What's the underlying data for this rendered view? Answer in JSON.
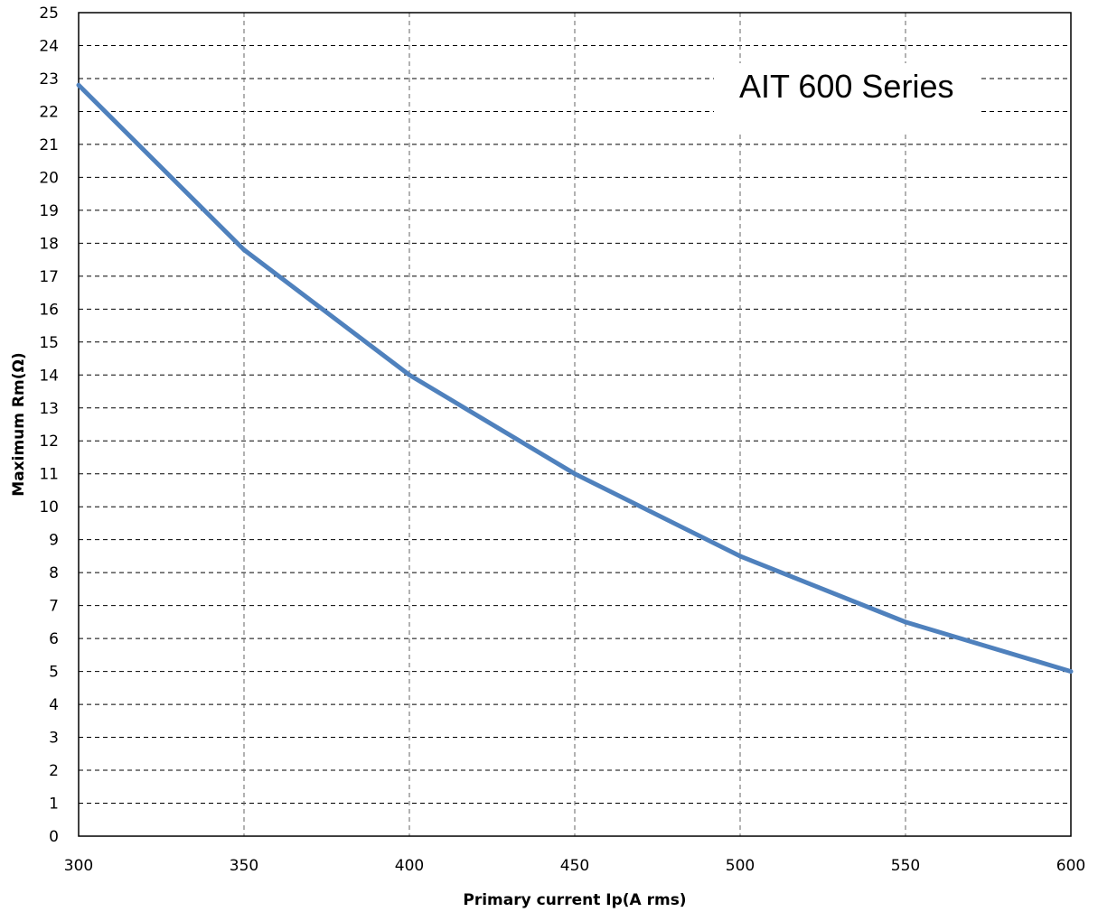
{
  "chart_data": {
    "type": "line",
    "title": "",
    "xlabel": "Primary current Ip(A rms)",
    "ylabel": "Maximum Rm(Ω)",
    "xlim": [
      300,
      600
    ],
    "ylim": [
      0,
      25
    ],
    "x_ticks": [
      300,
      350,
      400,
      450,
      500,
      550,
      600
    ],
    "y_ticks": [
      0,
      1,
      2,
      3,
      4,
      5,
      6,
      7,
      8,
      9,
      10,
      11,
      12,
      13,
      14,
      15,
      16,
      17,
      18,
      19,
      20,
      21,
      22,
      23,
      24,
      25
    ],
    "grid": true,
    "grid_style": "dashed",
    "series": [
      {
        "x": [
          300,
          350,
          400,
          450,
          500,
          550,
          600
        ],
        "y": [
          22.8,
          17.8,
          14,
          11,
          8.5,
          6.5,
          5
        ],
        "color": "#4f81bd"
      }
    ],
    "annotations": [
      "AIT 600 Series"
    ]
  }
}
